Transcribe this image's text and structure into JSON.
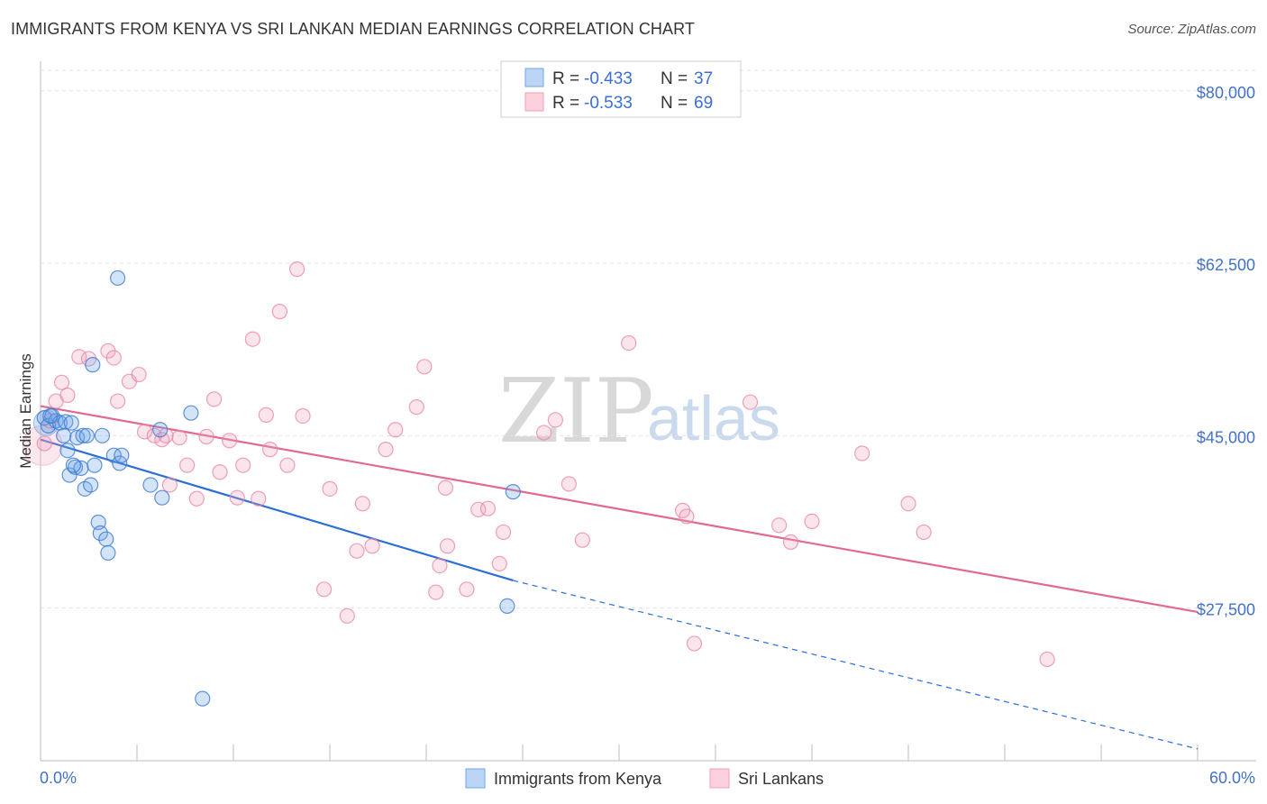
{
  "title": "IMMIGRANTS FROM KENYA VS SRI LANKAN MEDIAN EARNINGS CORRELATION CHART",
  "source": "Source: ZipAtlas.com",
  "watermark": {
    "zip": "ZIP",
    "atlas": "atlas"
  },
  "colors": {
    "kenya": "#6ea6e8",
    "kenya_line": "#2a6fd6",
    "srilanka": "#f1a1b9",
    "srilanka_line": "#e06a93",
    "tick_text": "#4472c4"
  },
  "legend": {
    "rows": [
      {
        "r_label": "R = ",
        "r_value": "-0.433",
        "n_label": "N = ",
        "n_value": "37"
      },
      {
        "r_label": "R = ",
        "r_value": "-0.533",
        "n_label": "N = ",
        "n_value": "69"
      }
    ]
  },
  "bottom_legend": [
    "Immigrants from Kenya",
    "Sri Lankans"
  ],
  "chart_data": {
    "type": "scatter",
    "ylabel": "Median Earnings",
    "xlim": [
      0,
      60
    ],
    "ylim": [
      12000,
      83000
    ],
    "x_tick_labels": [
      "0.0%",
      "60.0%"
    ],
    "y_ticks": [
      27500,
      45000,
      62500,
      80000
    ],
    "y_tick_labels": [
      "$27,500",
      "$45,000",
      "$62,500",
      "$80,000"
    ],
    "grid": true,
    "legend_position": "top-center",
    "series": [
      {
        "name": "Immigrants from Kenya",
        "points": [
          [
            0.2,
            46800
          ],
          [
            0.4,
            46000
          ],
          [
            0.6,
            47000
          ],
          [
            0.8,
            46500
          ],
          [
            1.0,
            46300
          ],
          [
            1.2,
            45000
          ],
          [
            1.4,
            43500
          ],
          [
            1.3,
            46400
          ],
          [
            1.5,
            41000
          ],
          [
            1.6,
            46300
          ],
          [
            1.9,
            44800
          ],
          [
            1.8,
            41800
          ],
          [
            2.1,
            41700
          ],
          [
            2.2,
            45000
          ],
          [
            2.3,
            39600
          ],
          [
            2.4,
            45000
          ],
          [
            2.6,
            40000
          ],
          [
            2.8,
            42000
          ],
          [
            2.7,
            52200
          ],
          [
            3.0,
            36200
          ],
          [
            3.1,
            35100
          ],
          [
            3.4,
            34500
          ],
          [
            3.5,
            33100
          ],
          [
            3.8,
            43000
          ],
          [
            4.1,
            42200
          ],
          [
            4.2,
            43000
          ],
          [
            4.0,
            61000
          ],
          [
            5.7,
            40000
          ],
          [
            6.3,
            38700
          ],
          [
            6.2,
            45600
          ],
          [
            7.8,
            47300
          ],
          [
            8.4,
            18300
          ],
          [
            24.5,
            39300
          ],
          [
            24.2,
            27700
          ],
          [
            0.5,
            47000
          ],
          [
            1.7,
            42000
          ],
          [
            3.2,
            45000
          ]
        ],
        "trend": {
          "x_start": 0,
          "y_start": 44600,
          "x_solid_end": 24.5,
          "y_solid_end": 30300,
          "x_end": 60,
          "y_end": 13200
        }
      },
      {
        "name": "Sri Lankans",
        "points": [
          [
            0.2,
            44200
          ],
          [
            0.5,
            46500
          ],
          [
            0.8,
            48500
          ],
          [
            1.1,
            50400
          ],
          [
            1.4,
            49100
          ],
          [
            2.0,
            53000
          ],
          [
            2.5,
            52800
          ],
          [
            3.5,
            53600
          ],
          [
            3.8,
            52900
          ],
          [
            4.0,
            48500
          ],
          [
            4.6,
            50500
          ],
          [
            5.1,
            51200
          ],
          [
            5.4,
            45400
          ],
          [
            5.9,
            45000
          ],
          [
            6.3,
            44600
          ],
          [
            6.7,
            40000
          ],
          [
            6.5,
            45000
          ],
          [
            7.2,
            44800
          ],
          [
            7.6,
            42000
          ],
          [
            8.1,
            38600
          ],
          [
            8.6,
            44900
          ],
          [
            9.0,
            48700
          ],
          [
            9.3,
            41300
          ],
          [
            9.8,
            44500
          ],
          [
            10.2,
            38700
          ],
          [
            10.5,
            42000
          ],
          [
            11.0,
            54800
          ],
          [
            11.3,
            38600
          ],
          [
            11.7,
            47100
          ],
          [
            11.9,
            43600
          ],
          [
            12.4,
            57600
          ],
          [
            12.8,
            42000
          ],
          [
            13.3,
            61900
          ],
          [
            13.6,
            47000
          ],
          [
            14.7,
            29400
          ],
          [
            15.0,
            39600
          ],
          [
            15.9,
            26700
          ],
          [
            16.4,
            33300
          ],
          [
            16.7,
            38100
          ],
          [
            17.2,
            33800
          ],
          [
            17.9,
            43600
          ],
          [
            18.4,
            45600
          ],
          [
            19.5,
            47900
          ],
          [
            19.9,
            52000
          ],
          [
            20.5,
            29100
          ],
          [
            20.7,
            31800
          ],
          [
            21.1,
            33800
          ],
          [
            21.0,
            39700
          ],
          [
            22.1,
            29400
          ],
          [
            22.7,
            37500
          ],
          [
            23.2,
            37600
          ],
          [
            23.8,
            32000
          ],
          [
            24.0,
            35200
          ],
          [
            26.1,
            45300
          ],
          [
            26.7,
            46600
          ],
          [
            27.4,
            40100
          ],
          [
            28.1,
            34400
          ],
          [
            30.5,
            54400
          ],
          [
            33.3,
            37400
          ],
          [
            33.5,
            36800
          ],
          [
            33.9,
            23900
          ],
          [
            36.8,
            48400
          ],
          [
            38.3,
            35900
          ],
          [
            38.9,
            34200
          ],
          [
            40.0,
            36300
          ],
          [
            42.6,
            43200
          ],
          [
            45.0,
            38100
          ],
          [
            45.8,
            35200
          ],
          [
            52.2,
            22300
          ]
        ],
        "trend": {
          "x_start": 0,
          "y_start": 48000,
          "x_end": 60,
          "y_end": 27100
        }
      }
    ]
  }
}
